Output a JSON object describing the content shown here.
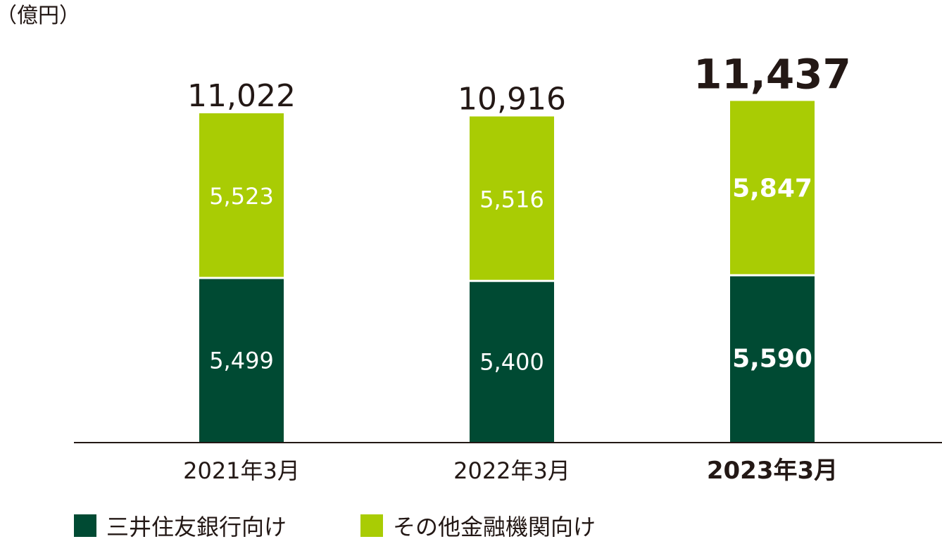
{
  "chart_data": {
    "type": "bar",
    "stacked": true,
    "unit": "（億円）",
    "categories": [
      "2021年3月",
      "2022年3月",
      "2023年3月"
    ],
    "highlight_category": "2023年3月",
    "series": [
      {
        "name": "三井住友銀行向け",
        "color": "#004a33",
        "values": [
          5499,
          5400,
          5590
        ]
      },
      {
        "name": "その他金融機関向け",
        "color": "#a9cc04",
        "values": [
          5523,
          5516,
          5847
        ]
      }
    ],
    "totals": [
      11022,
      10916,
      11437
    ],
    "grid": false,
    "legend_position": "bottom-left"
  }
}
